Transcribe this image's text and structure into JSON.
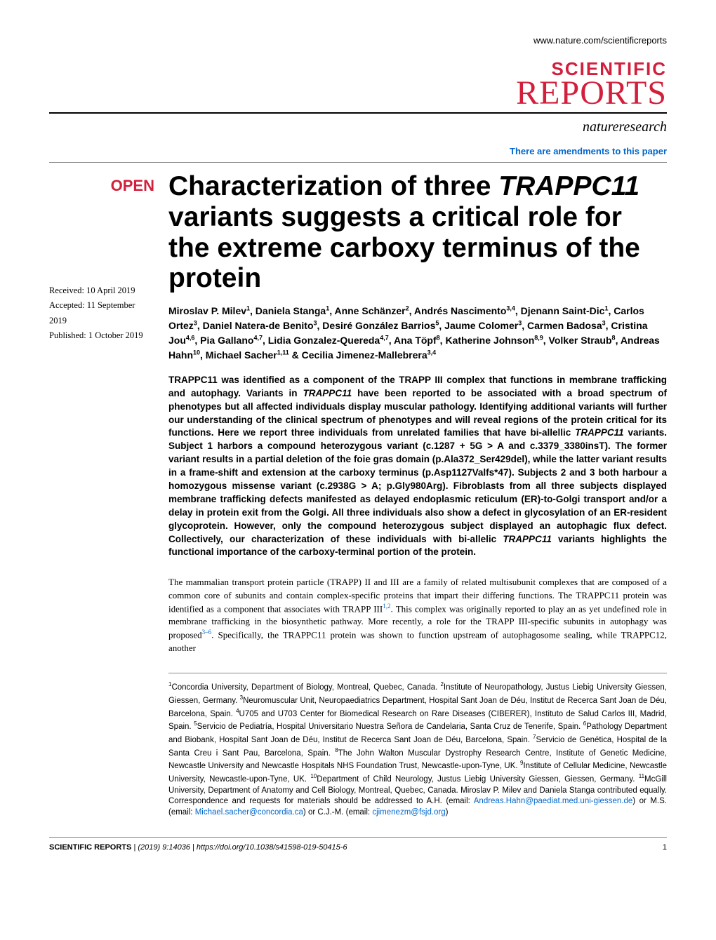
{
  "header": {
    "url": "www.nature.com/scientificreports",
    "journal_top": "SCIENTIFIC",
    "journal_bottom": "REPORTS",
    "publisher": "natureresearch",
    "amendments": "There are amendments to this paper",
    "brand_color": "#d21f3c",
    "link_color": "#0066cc"
  },
  "badge": {
    "open": "OPEN"
  },
  "dates": {
    "received": "Received: 10 April 2019",
    "accepted": "Accepted: 11 September 2019",
    "published": "Published: 1 October 2019"
  },
  "title": {
    "pre": "Characterization of three ",
    "italic": "TRAPPC11",
    "post": " variants suggests a critical role for the extreme carboxy terminus of the protein"
  },
  "authors_html": "Miroslav P. Milev<sup>1</sup>, Daniela Stanga<sup>1</sup>, Anne Schänzer<sup>2</sup>, Andrés Nascimento<sup>3,4</sup>, Djenann Saint-Dic<sup>1</sup>, Carlos Ortez<sup>3</sup>, Daniel Natera-de Benito<sup>3</sup>, Desiré González Barrios<sup>5</sup>, Jaume Colomer<sup>3</sup>, Carmen Badosa<sup>3</sup>, Cristina Jou<sup>4,6</sup>, Pia Gallano<sup>4,7</sup>, Lidia Gonzalez-Quereda<sup>4,7</sup>, Ana Töpf<sup>8</sup>, Katherine Johnson<sup>8,9</sup>, Volker Straub<sup>8</sup>, Andreas Hahn<sup>10</sup>, Michael Sacher<sup>1,11</sup> & Cecilia Jimenez-Mallebrera<sup>3,4</sup>",
  "abstract_html": "TRAPPC11 was identified as a component of the TRAPP III complex that functions in membrane trafficking and autophagy. Variants in <span class=\"italic\">TRAPPC11</span> have been reported to be associated with a broad spectrum of phenotypes but all affected individuals display muscular pathology. Identifying additional variants will further our understanding of the clinical spectrum of phenotypes and will reveal regions of the protein critical for its functions. Here we report three individuals from unrelated families that have bi-allellic <span class=\"italic\">TRAPPC11</span> variants. Subject 1 harbors a compound heterozygous variant (c.1287 + 5G > A and c.3379_3380insT). The former variant results in a partial deletion of the foie gras domain (p.Ala372_Ser429del), while the latter variant results in a frame-shift and extension at the carboxy terminus (p.Asp1127Valfs*47). Subjects 2 and 3 both harbour a homozygous missense variant (c.2938G > A; p.Gly980Arg). Fibroblasts from all three subjects displayed membrane trafficking defects manifested as delayed endoplasmic reticulum (ER)-to-Golgi transport and/or a delay in protein exit from the Golgi. All three individuals also show a defect in glycosylation of an ER-resident glycoprotein. However, only the compound heterozygous subject displayed an autophagic flux defect. Collectively, our characterization of these individuals with bi-allelic <span class=\"italic\">TRAPPC11</span> variants highlights the functional importance of the carboxy-terminal portion of the protein.",
  "body_html": "The mammalian transport protein particle (TRAPP) II and III are a family of related multisubunit complexes that are composed of a common core of subunits and contain complex-specific proteins that impart their differing functions. The TRAPPC11 protein was identified as a component that associates with TRAPP III<sup>1,2</sup>. This complex was originally reported to play an as yet undefined role in membrane trafficking in the biosynthetic pathway. More recently, a role for the TRAPP III-specific subunits in autophagy was proposed<sup>3–6</sup>. Specifically, the TRAPPC11 protein was shown to function upstream of autophagosome sealing, while TRAPPC12, another",
  "affiliations_html": "<sup>1</sup>Concordia University, Department of Biology, Montreal, Quebec, Canada. <sup>2</sup>Institute of Neuropathology, Justus Liebig University Giessen, Giessen, Germany. <sup>3</sup>Neuromuscular Unit, Neuropaediatrics Department, Hospital Sant Joan de Déu, Institut de Recerca Sant Joan de Déu, Barcelona, Spain. <sup>4</sup>U705 and U703 Center for Biomedical Research on Rare Diseases (CIBERER), Instituto de Salud Carlos III, Madrid, Spain. <sup>5</sup>Servicio de Pediatría, Hospital Universitario Nuestra Señora de Candelaria, Santa Cruz de Tenerife, Spain. <sup>6</sup>Pathology Department and Biobank, Hospital Sant Joan de Déu, Institut de Recerca Sant Joan de Déu, Barcelona, Spain. <sup>7</sup>Servicio de Genética, Hospital de la Santa Creu i Sant Pau, Barcelona, Spain. <sup>8</sup>The John Walton Muscular Dystrophy Research Centre, Institute of Genetic Medicine, Newcastle University and Newcastle Hospitals NHS Foundation Trust, Newcastle-upon-Tyne, UK. <sup>9</sup>Institute of Cellular Medicine, Newcastle University, Newcastle-upon-Tyne, UK. <sup>10</sup>Department of Child Neurology, Justus Liebig University Giessen, Giessen, Germany. <sup>11</sup>McGill University, Department of Anatomy and Cell Biology, Montreal, Quebec, Canada. Miroslav P. Milev and Daniela Stanga contributed equally. Correspondence and requests for materials should be addressed to A.H. (email: <span class=\"email\">Andreas.Hahn@paediat.med.uni-giessen.de</span>) or M.S. (email: <span class=\"email\">Michael.sacher@concordia.ca</span>) or C.J.-M. (email: <span class=\"email\">cjimenezm@fsjd.org</span>)",
  "footer": {
    "journal": "SCIENTIFIC REPORTS",
    "citation": " |          (2019) 9:14036  | https://doi.org/10.1038/s41598-019-50415-6",
    "page_number": "1"
  }
}
